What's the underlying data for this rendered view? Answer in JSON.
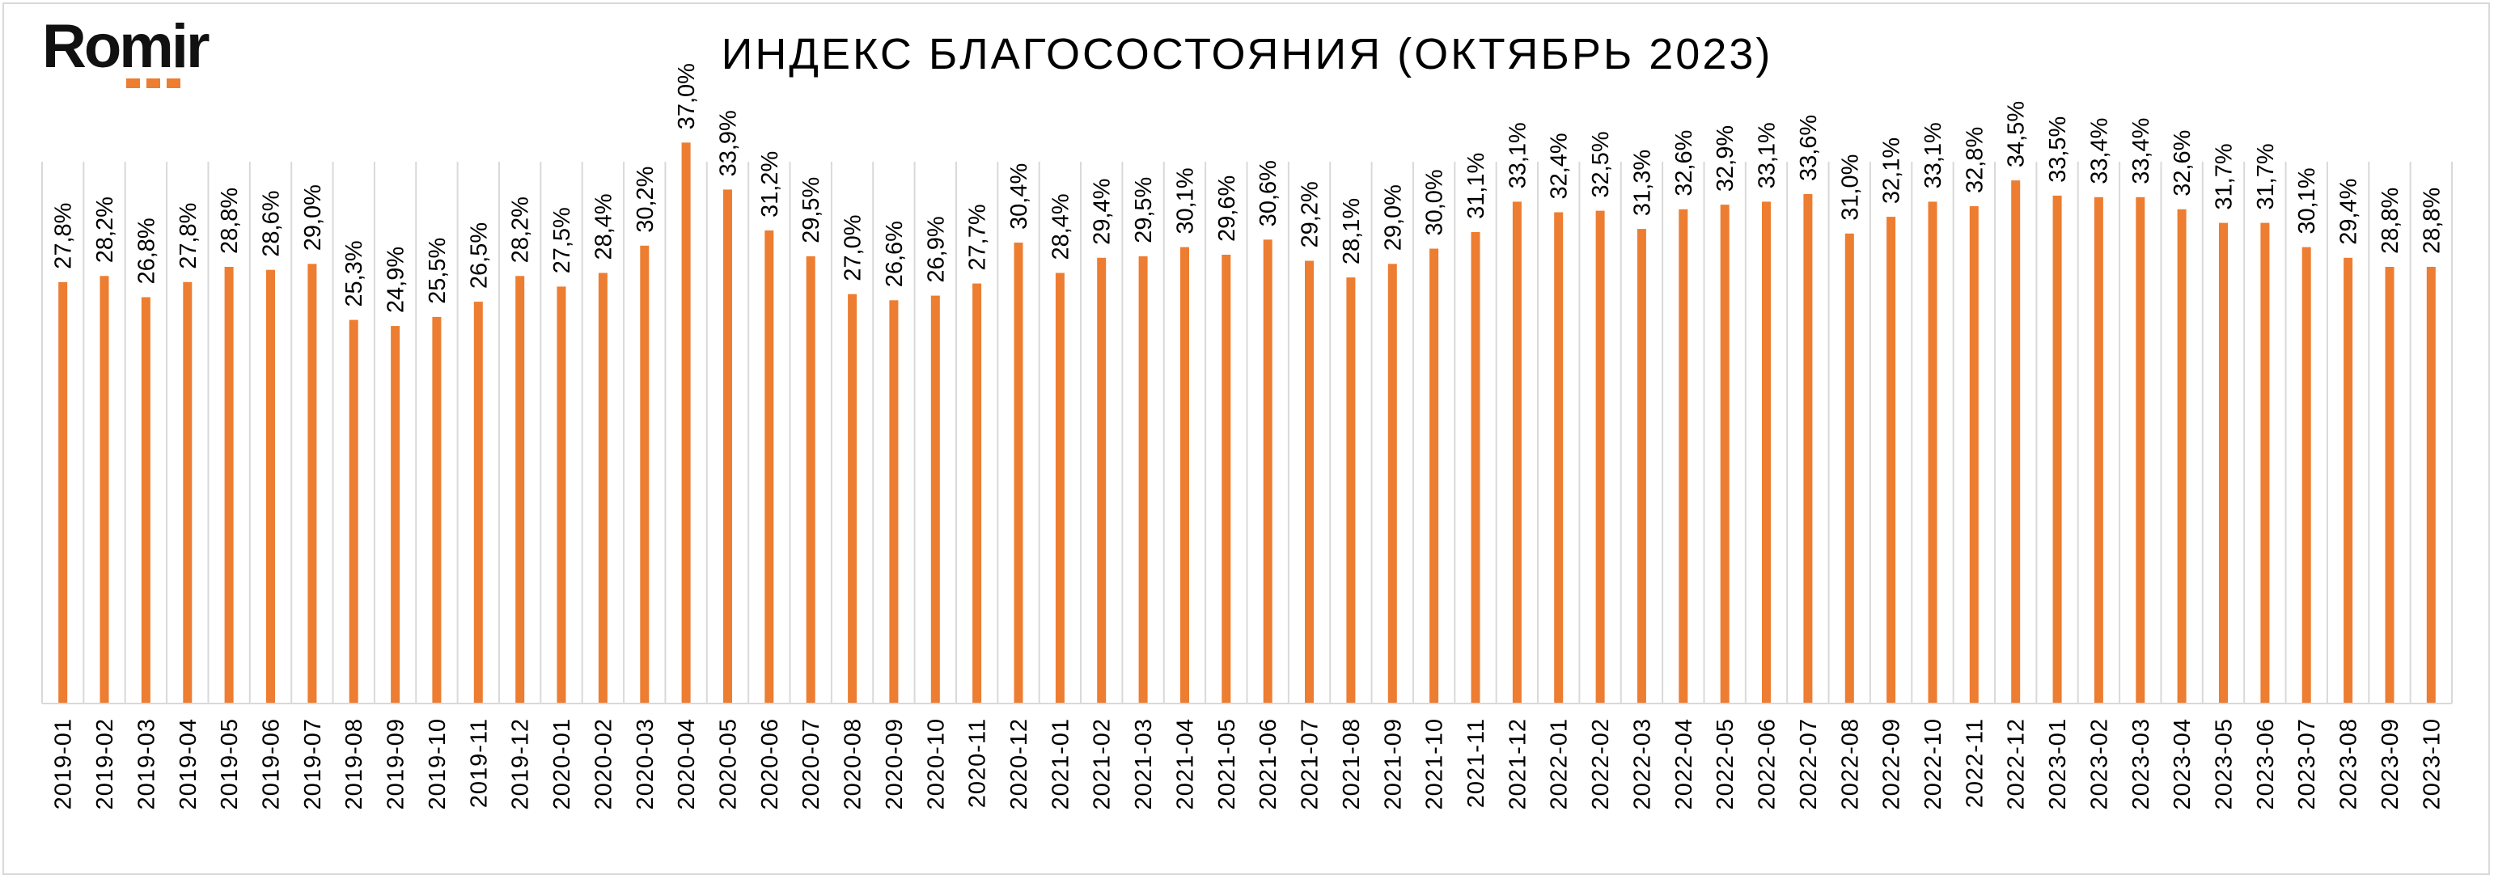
{
  "brand": {
    "logo_text": "Romir",
    "accent_color": "#ed7d31"
  },
  "chart_data": {
    "type": "bar",
    "title": "ИНДЕКС БЛАГОСОСТОЯНИЯ (ОКТЯБРЬ 2023)",
    "xlabel": "",
    "ylabel": "",
    "ylim": [
      0,
      40
    ],
    "grid": "vertical",
    "legend": "none",
    "bar_color": "#ed7d31",
    "categories": [
      "2019-01",
      "2019-02",
      "2019-03",
      "2019-04",
      "2019-05",
      "2019-06",
      "2019-07",
      "2019-08",
      "2019-09",
      "2019-10",
      "2019-11",
      "2019-12",
      "2020-01",
      "2020-02",
      "2020-03",
      "2020-04",
      "2020-05",
      "2020-06",
      "2020-07",
      "2020-08",
      "2020-09",
      "2020-10",
      "2020-11",
      "2020-12",
      "2021-01",
      "2021-02",
      "2021-03",
      "2021-04",
      "2021-05",
      "2021-06",
      "2021-07",
      "2021-08",
      "2021-09",
      "2021-10",
      "2021-11",
      "2021-12",
      "2022-01",
      "2022-02",
      "2022-03",
      "2022-04",
      "2022-05",
      "2022-06",
      "2022-07",
      "2022-08",
      "2022-09",
      "2022-10",
      "2022-11",
      "2022-12",
      "2023-01",
      "2023-02",
      "2023-03",
      "2023-04",
      "2023-05",
      "2023-06",
      "2023-07",
      "2023-08",
      "2023-09",
      "2023-10"
    ],
    "values": [
      27.8,
      28.2,
      26.8,
      27.8,
      28.8,
      28.6,
      29.0,
      25.3,
      24.9,
      25.5,
      26.5,
      28.2,
      27.5,
      28.4,
      30.2,
      37.0,
      33.9,
      31.2,
      29.5,
      27.0,
      26.6,
      26.9,
      27.7,
      30.4,
      28.4,
      29.4,
      29.5,
      30.1,
      29.6,
      30.6,
      29.2,
      28.1,
      29.0,
      30.0,
      31.1,
      33.1,
      32.4,
      32.5,
      31.3,
      32.6,
      32.9,
      33.1,
      33.6,
      31.0,
      32.1,
      33.1,
      32.8,
      34.5,
      33.5,
      33.4,
      33.4,
      32.6,
      31.7,
      31.7,
      30.1,
      29.4,
      28.8,
      28.8
    ],
    "labels": [
      "27,8%",
      "28,2%",
      "26,8%",
      "27,8%",
      "28,8%",
      "28,6%",
      "29,0%",
      "25,3%",
      "24,9%",
      "25,5%",
      "26,5%",
      "28,2%",
      "27,5%",
      "28,4%",
      "30,2%",
      "37,0%",
      "33,9%",
      "31,2%",
      "29,5%",
      "27,0%",
      "26,6%",
      "26,9%",
      "27,7%",
      "30,4%",
      "28,4%",
      "29,4%",
      "29,5%",
      "30,1%",
      "29,6%",
      "30,6%",
      "29,2%",
      "28,1%",
      "29,0%",
      "30,0%",
      "31,1%",
      "33,1%",
      "32,4%",
      "32,5%",
      "31,3%",
      "32,6%",
      "32,9%",
      "33,1%",
      "33,6%",
      "31,0%",
      "32,1%",
      "33,1%",
      "32,8%",
      "34,5%",
      "33,5%",
      "33,4%",
      "33,4%",
      "32,6%",
      "31,7%",
      "31,7%",
      "30,1%",
      "29,4%",
      "28,8%",
      "28,8%"
    ]
  }
}
